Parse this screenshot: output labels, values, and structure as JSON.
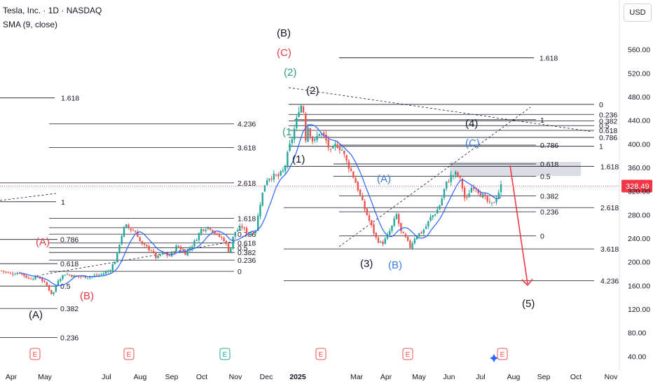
{
  "header": {
    "symbol": "Tesla, Inc. · 1D · NASDAQ",
    "indicator": "SMA (9, close)",
    "currency_button": "USD"
  },
  "colors": {
    "up": "#26a69a",
    "down": "#ef5350",
    "sma": "#2962ff",
    "level_line": "#131722",
    "price_line": "#f23645",
    "price_badge": "#f23645",
    "label_red": "#e03b4a",
    "label_blue": "#3b7ddd",
    "label_green": "#2e9e80"
  },
  "chart_data": {
    "type": "candlestick",
    "title": "Tesla, Inc. · 1D · NASDAQ",
    "indicator": "SMA (9, close)",
    "last_price": 328.49,
    "last_price_label": "328.49",
    "y_axis": {
      "range": [
        40,
        560
      ],
      "ticks": [
        "40.00",
        "80.00",
        "120.00",
        "160.00",
        "200.00",
        "240.00",
        "280.00",
        "320.00",
        "360.00",
        "400.00",
        "440.00",
        "480.00",
        "520.00",
        "560.00"
      ]
    },
    "x_axis": {
      "labels": [
        "Apr",
        "May",
        "Jul",
        "Aug",
        "Sep",
        "Oct",
        "Nov",
        "Dec",
        "2025",
        "Mar",
        "Apr",
        "May",
        "Jun",
        "Jul",
        "Aug",
        "Sep",
        "Oct",
        "Nov"
      ]
    },
    "price_path": [
      {
        "d": 0,
        "p": 185
      },
      {
        "d": 8,
        "p": 180
      },
      {
        "d": 16,
        "p": 182
      },
      {
        "d": 24,
        "p": 172
      },
      {
        "d": 33,
        "p": 175
      },
      {
        "d": 40,
        "p": 160
      },
      {
        "d": 45,
        "p": 143
      },
      {
        "d": 50,
        "p": 170
      },
      {
        "d": 56,
        "p": 180
      },
      {
        "d": 66,
        "p": 175
      },
      {
        "d": 77,
        "p": 175
      },
      {
        "d": 87,
        "p": 178
      },
      {
        "d": 95,
        "p": 185
      },
      {
        "d": 101,
        "p": 205
      },
      {
        "d": 105,
        "p": 240
      },
      {
        "d": 109,
        "p": 262
      },
      {
        "d": 114,
        "p": 255
      },
      {
        "d": 119,
        "p": 250
      },
      {
        "d": 123,
        "p": 230
      },
      {
        "d": 132,
        "p": 220
      },
      {
        "d": 137,
        "p": 205
      },
      {
        "d": 141,
        "p": 215
      },
      {
        "d": 148,
        "p": 210
      },
      {
        "d": 155,
        "p": 228
      },
      {
        "d": 162,
        "p": 215
      },
      {
        "d": 169,
        "p": 230
      },
      {
        "d": 176,
        "p": 255
      },
      {
        "d": 183,
        "p": 260
      },
      {
        "d": 190,
        "p": 245
      },
      {
        "d": 196,
        "p": 238
      },
      {
        "d": 201,
        "p": 215
      },
      {
        "d": 205,
        "p": 250
      },
      {
        "d": 212,
        "p": 260
      },
      {
        "d": 217,
        "p": 245
      },
      {
        "d": 224,
        "p": 255
      },
      {
        "d": 228,
        "p": 300
      },
      {
        "d": 233,
        "p": 340
      },
      {
        "d": 237,
        "p": 345
      },
      {
        "d": 244,
        "p": 345
      },
      {
        "d": 249,
        "p": 355
      },
      {
        "d": 253,
        "p": 390
      },
      {
        "d": 256,
        "p": 410
      },
      {
        "d": 260,
        "p": 440
      },
      {
        "d": 263,
        "p": 470
      },
      {
        "d": 266,
        "p": 455
      },
      {
        "d": 268,
        "p": 410
      },
      {
        "d": 270,
        "p": 430
      },
      {
        "d": 275,
        "p": 400
      },
      {
        "d": 280,
        "p": 420
      },
      {
        "d": 285,
        "p": 410
      },
      {
        "d": 290,
        "p": 385
      },
      {
        "d": 295,
        "p": 400
      },
      {
        "d": 300,
        "p": 390
      },
      {
        "d": 304,
        "p": 370
      },
      {
        "d": 309,
        "p": 350
      },
      {
        "d": 313,
        "p": 330
      },
      {
        "d": 318,
        "p": 300
      },
      {
        "d": 322,
        "p": 280
      },
      {
        "d": 326,
        "p": 260
      },
      {
        "d": 330,
        "p": 240
      },
      {
        "d": 335,
        "p": 230
      },
      {
        "d": 339,
        "p": 240
      },
      {
        "d": 344,
        "p": 260
      },
      {
        "d": 348,
        "p": 280
      },
      {
        "d": 352,
        "p": 250
      },
      {
        "d": 356,
        "p": 240
      },
      {
        "d": 360,
        "p": 225
      },
      {
        "d": 365,
        "p": 245
      },
      {
        "d": 370,
        "p": 250
      },
      {
        "d": 374,
        "p": 260
      },
      {
        "d": 378,
        "p": 275
      },
      {
        "d": 383,
        "p": 285
      },
      {
        "d": 387,
        "p": 300
      },
      {
        "d": 391,
        "p": 330
      },
      {
        "d": 396,
        "p": 345
      },
      {
        "d": 401,
        "p": 350
      },
      {
        "d": 405,
        "p": 335
      },
      {
        "d": 409,
        "p": 300
      },
      {
        "d": 413,
        "p": 325
      },
      {
        "d": 417,
        "p": 330
      },
      {
        "d": 422,
        "p": 315
      },
      {
        "d": 427,
        "p": 305
      },
      {
        "d": 431,
        "p": 295
      },
      {
        "d": 435,
        "p": 305
      },
      {
        "d": 440,
        "p": 328.49
      }
    ],
    "levels": [
      {
        "label": "1.618",
        "pos": "left",
        "price": 478
      },
      {
        "label": "4.236",
        "pos": "left",
        "price": 434
      },
      {
        "label": "3.618",
        "pos": "left",
        "price": 394
      },
      {
        "label": "2.618",
        "pos": "left",
        "price": 334
      },
      {
        "label": "1",
        "pos": "left",
        "price": 302
      },
      {
        "label": "1.618",
        "pos": "mid",
        "price": 274
      },
      {
        "label": "1",
        "pos": "mid",
        "price": 258
      },
      {
        "label": "0.786",
        "pos": "mid",
        "price": 247
      },
      {
        "label": "0.786",
        "pos": "left",
        "price": 238
      },
      {
        "label": "0.618",
        "pos": "mid",
        "price": 232
      },
      {
        "label": "0.5",
        "pos": "mid",
        "price": 224
      },
      {
        "label": "0.382",
        "pos": "mid",
        "price": 216
      },
      {
        "label": "0.618",
        "pos": "left",
        "price": 197
      },
      {
        "label": "0.236",
        "pos": "mid",
        "price": 203
      },
      {
        "label": "0",
        "pos": "mid",
        "price": 184
      },
      {
        "label": "0.5",
        "pos": "left",
        "price": 159
      },
      {
        "label": "0.382",
        "pos": "left",
        "price": 121
      },
      {
        "label": "0.236",
        "pos": "left",
        "price": 72
      },
      {
        "label": "1.618",
        "pos": "top",
        "price": 546
      },
      {
        "label": "0",
        "pos": "right",
        "price": 467
      },
      {
        "label": "0.236",
        "pos": "right",
        "price": 450
      },
      {
        "label": "0.382",
        "pos": "right",
        "price": 439
      },
      {
        "label": "0.5",
        "pos": "right",
        "price": 431
      },
      {
        "label": "0.618",
        "pos": "right",
        "price": 423
      },
      {
        "label": "0.786",
        "pos": "right",
        "price": 411
      },
      {
        "label": "1",
        "pos": "right",
        "price": 396
      },
      {
        "label": "1",
        "pos": "right2",
        "price": 441
      },
      {
        "label": "0.786",
        "pos": "right2",
        "price": 398
      },
      {
        "label": "0.618",
        "pos": "right2",
        "price": 366
      },
      {
        "label": "1.618",
        "pos": "right3",
        "price": 362
      },
      {
        "label": "0.5",
        "pos": "right2",
        "price": 345
      },
      {
        "label": "0.382",
        "pos": "right2",
        "price": 312
      },
      {
        "label": "2.618",
        "pos": "right3",
        "price": 292
      },
      {
        "label": "0.236",
        "pos": "right2",
        "price": 285
      },
      {
        "label": "0",
        "pos": "right2",
        "price": 244
      },
      {
        "label": "3.618",
        "pos": "right3",
        "price": 222
      },
      {
        "label": "4.236",
        "pos": "right3",
        "price": 168
      }
    ],
    "wave_labels": [
      {
        "text": "(B)",
        "color": "black"
      },
      {
        "text": "(C)",
        "color": "red"
      },
      {
        "text": "(2)",
        "color": "green"
      },
      {
        "text": "(2)",
        "color": "black"
      },
      {
        "text": "(1",
        "color": "green"
      },
      {
        "text": "(1)",
        "color": "black"
      },
      {
        "text": "(4)",
        "color": "black"
      },
      {
        "text": "(C)",
        "color": "blue"
      },
      {
        "text": "(A)",
        "color": "blue"
      },
      {
        "text": "(3)",
        "color": "black"
      },
      {
        "text": "(B)",
        "color": "blue"
      },
      {
        "text": "(5)",
        "color": "black"
      },
      {
        "text": "(A)",
        "color": "red"
      },
      {
        "text": "(B)",
        "color": "red"
      },
      {
        "text": "(A)",
        "color": "black"
      }
    ],
    "earnings_markers": [
      "E",
      "E",
      "E",
      "E",
      "E",
      "E",
      "E"
    ],
    "grid": false
  }
}
